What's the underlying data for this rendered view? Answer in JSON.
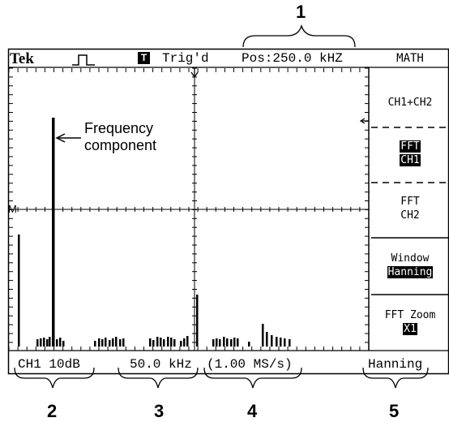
{
  "callouts": [
    "1",
    "2",
    "3",
    "4",
    "5"
  ],
  "header": {
    "brand": "Tek",
    "trigger_icon": "T",
    "trigger_status": "Trig'd",
    "position": "Pos:250.0 kHZ",
    "menu_title": "MATH"
  },
  "menu": {
    "item1": "CH1+CH2",
    "item2_line1": "FFT",
    "item2_line2": "CH1",
    "item3_line1": "FFT",
    "item3_line2": "CH2",
    "item4_line1": "Window",
    "item4_line2": "Hanning",
    "item5_line1": "FFT Zoom",
    "item5_line2": "X1"
  },
  "screen": {
    "marker_M": "M",
    "annotation_line1": "Frequency",
    "annotation_line2": "component"
  },
  "footer": {
    "scale": "CH1 10dB",
    "freq_div": "50.0 kHz",
    "sample_rate": "(1.00 MS/s)",
    "window": "Hanning"
  }
}
